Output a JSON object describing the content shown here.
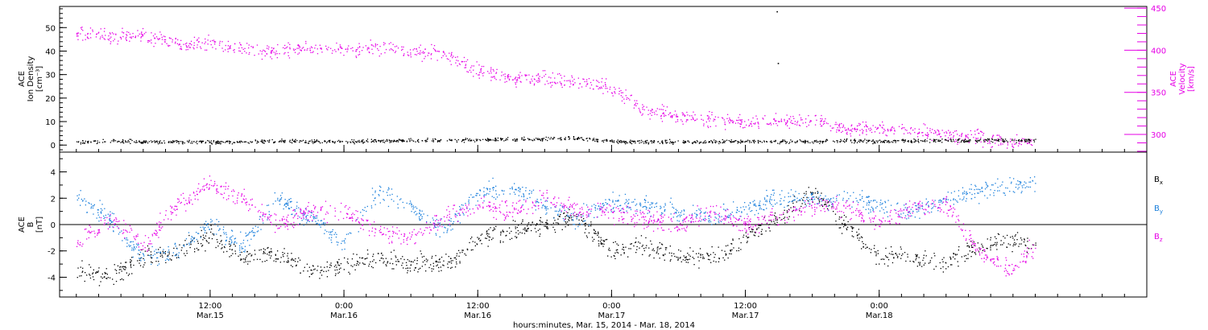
{
  "chart_data": [
    {
      "type": "scatter",
      "panel": "top",
      "ylabel_left": [
        "ACE",
        "Ion Density",
        "[cm⁻³]"
      ],
      "ylabel_right": [
        "ACE",
        "Velocity",
        "[km/s]"
      ],
      "ylim_left": [
        -3,
        59
      ],
      "yticks_left": [
        "0",
        "10",
        "20",
        "30",
        "40",
        "50"
      ],
      "ylim_right": [
        279,
        452
      ],
      "yticks_right": [
        "300",
        "350",
        "400",
        "450"
      ],
      "series": [
        {
          "axis": "left",
          "color": "#000000",
          "x_hours": [
            0,
            3,
            6,
            9,
            12,
            15,
            18,
            21,
            24,
            27,
            30,
            33,
            36,
            39,
            42,
            45,
            48,
            51,
            54,
            57,
            60,
            63,
            66,
            69,
            72,
            75,
            78,
            81,
            84,
            86
          ],
          "values": [
            1.5,
            1.8,
            1.6,
            1.5,
            1.4,
            1.6,
            1.8,
            1.7,
            1.6,
            1.8,
            2.1,
            2.3,
            2.4,
            2.6,
            2.8,
            3.0,
            1.8,
            1.6,
            1.5,
            1.6,
            1.8,
            1.7,
            1.6,
            1.9,
            1.8,
            2.0,
            2.1,
            2.2,
            2.3,
            2.4
          ]
        },
        {
          "axis": "right",
          "color": "#e600e6",
          "x_hours": [
            0,
            3,
            6,
            9,
            12,
            15,
            18,
            21,
            24,
            27,
            30,
            33,
            36,
            39,
            42,
            45,
            48,
            51,
            54,
            57,
            60,
            63,
            66,
            69,
            72,
            75,
            78,
            81,
            84,
            86
          ],
          "values": [
            421,
            416,
            418,
            410,
            408,
            403,
            398,
            403,
            400,
            403,
            398,
            396,
            376,
            366,
            368,
            361,
            356,
            328,
            322,
            318,
            314,
            316,
            318,
            306,
            308,
            304,
            300,
            297,
            291,
            292
          ]
        }
      ],
      "outliers_black": [
        [
          62.8,
          57
        ],
        [
          62.9,
          35
        ]
      ]
    },
    {
      "type": "scatter",
      "panel": "bottom",
      "ylabel_left": [
        "ACE",
        "B",
        "[nT]"
      ],
      "ylim": [
        -5.5,
        5.5
      ],
      "yticks": [
        "-4",
        "-2",
        "0",
        "2",
        "4"
      ],
      "legend": [
        {
          "label": "B",
          "sub": "x",
          "color": "#000000"
        },
        {
          "label": "B",
          "sub": "y",
          "color": "#1a7fdc"
        },
        {
          "label": "B",
          "sub": "z",
          "color": "#e600e6"
        }
      ],
      "x_hours": [
        0,
        3,
        6,
        9,
        12,
        15,
        18,
        21,
        24,
        27,
        30,
        33,
        36,
        39,
        42,
        45,
        48,
        51,
        54,
        57,
        60,
        63,
        66,
        69,
        72,
        75,
        78,
        81,
        84,
        86
      ],
      "series": [
        {
          "name": "Bx",
          "color": "#000000",
          "values": [
            -3.5,
            -4.0,
            -2.5,
            -2.0,
            -1.0,
            -2.5,
            -2.0,
            -3.6,
            -3.0,
            -2.5,
            -2.8,
            -3.0,
            -1.0,
            -0.5,
            0.0,
            0.5,
            -2.0,
            -1.5,
            -2.5,
            -2.5,
            -1.0,
            0.5,
            2.5,
            0.0,
            -2.5,
            -2.3,
            -3.0,
            -1.5,
            -1.2,
            -1.5
          ]
        },
        {
          "name": "By",
          "color": "#1a7fdc",
          "values": [
            2.0,
            0.5,
            -2.5,
            -2.0,
            0.0,
            -1.5,
            2.0,
            0.5,
            -1.5,
            2.5,
            1.5,
            -0.5,
            2.5,
            2.8,
            1.5,
            0.5,
            1.8,
            1.5,
            1.0,
            0.5,
            1.2,
            2.0,
            2.0,
            2.0,
            1.5,
            1.0,
            2.0,
            2.5,
            3.0,
            3.0
          ]
        },
        {
          "name": "Bz",
          "color": "#e600e6",
          "values": [
            -1.5,
            0.5,
            -1.5,
            1.5,
            3.0,
            2.0,
            0.0,
            1.0,
            1.0,
            -0.5,
            -1.0,
            0.5,
            1.5,
            1.0,
            2.0,
            1.0,
            1.0,
            0.5,
            0.0,
            1.0,
            0.0,
            0.5,
            1.5,
            1.5,
            0.0,
            1.5,
            1.5,
            -2.0,
            -3.5,
            -1.5
          ]
        }
      ]
    }
  ],
  "x_axis": {
    "range_hours": [
      -1.5,
      96
    ],
    "ticks": [
      {
        "h": 12,
        "time": "12:00",
        "date": "Mar.15"
      },
      {
        "h": 24,
        "time": "0:00",
        "date": "Mar.16"
      },
      {
        "h": 36,
        "time": "12:00",
        "date": "Mar.16"
      },
      {
        "h": 48,
        "time": "0:00",
        "date": "Mar.17"
      },
      {
        "h": 60,
        "time": "12:00",
        "date": "Mar.17"
      },
      {
        "h": 72,
        "time": "0:00",
        "date": "Mar.18"
      }
    ],
    "label": "hours:minutes, Mar. 15, 2014 - Mar. 18, 2014"
  }
}
